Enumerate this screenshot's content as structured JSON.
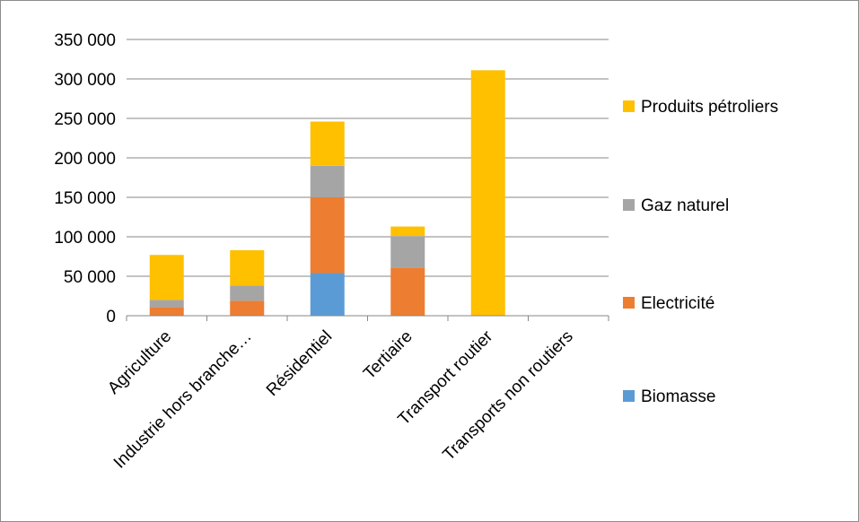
{
  "chart_data": {
    "type": "bar",
    "stacked": true,
    "categories": [
      "Agriculture",
      "Industrie hors branche…",
      "Résidentiel",
      "Tertiaire",
      "Transport routier",
      "Transports non routiers"
    ],
    "series": [
      {
        "name": "Biomasse",
        "color": "#5B9BD5",
        "values": [
          0,
          0,
          54000,
          0,
          0,
          0
        ]
      },
      {
        "name": "Electricité",
        "color": "#ED7D31",
        "values": [
          11000,
          19000,
          96000,
          61000,
          0,
          0
        ]
      },
      {
        "name": "Gaz naturel",
        "color": "#A5A5A5",
        "values": [
          9000,
          19000,
          40000,
          40000,
          0,
          0
        ]
      },
      {
        "name": "Produits pétroliers",
        "color": "#FFC000",
        "values": [
          57000,
          45000,
          56000,
          12000,
          311000,
          0
        ]
      }
    ],
    "ylim": [
      0,
      350000
    ],
    "yticks": [
      "0",
      "50 000",
      "100 000",
      "150 000",
      "200 000",
      "250 000",
      "300 000",
      "350 000"
    ],
    "grid": true,
    "legend": {
      "position": "right",
      "order": [
        "Produits pétroliers",
        "Gaz naturel",
        "Electricité",
        "Biomasse"
      ]
    }
  }
}
